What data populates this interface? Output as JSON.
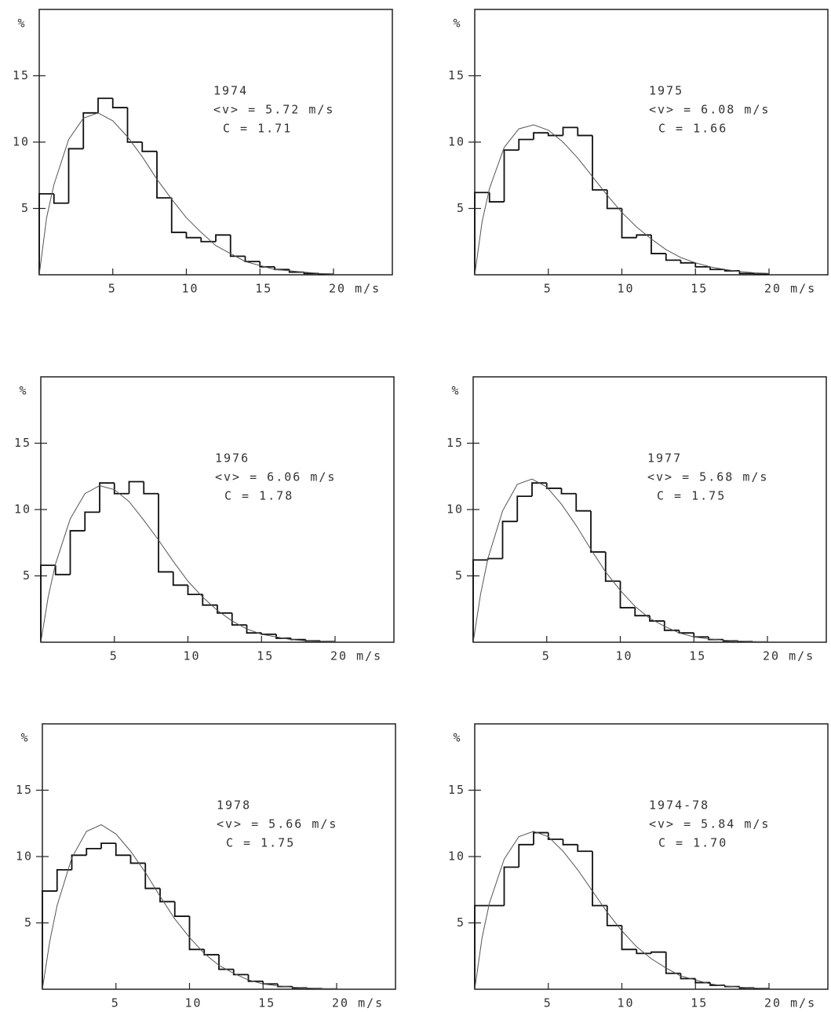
{
  "chart_data": [
    {
      "type": "histogram",
      "title": "1974",
      "annotations": [
        "<v> = 5.72 m/s",
        "C = 1.71"
      ],
      "ylabel": "%",
      "bins": [
        0,
        1,
        2,
        3,
        4,
        5,
        6,
        7,
        8,
        9,
        10,
        11,
        12,
        13,
        14,
        15,
        16,
        17,
        18,
        19,
        20
      ],
      "counts": [
        6.1,
        5.4,
        9.5,
        12.2,
        13.3,
        12.6,
        10,
        9.3,
        5.8,
        3.2,
        2.8,
        2.5,
        3.0,
        1.4,
        1.0,
        0.6,
        0.4,
        0.2,
        0.1,
        0.05
      ],
      "curve": {
        "x": [
          0,
          0.5,
          1,
          2,
          3,
          4,
          5,
          6,
          7,
          8,
          9,
          10,
          11,
          12,
          13,
          14,
          15,
          16,
          17,
          18,
          19,
          20
        ],
        "values": [
          0,
          4.3,
          6.8,
          10.2,
          11.8,
          12.2,
          11.6,
          10.4,
          8.9,
          7.2,
          5.7,
          4.3,
          3.2,
          2.2,
          1.6,
          1.0,
          0.7,
          0.4,
          0.3,
          0.2,
          0.1,
          0.05
        ]
      },
      "xlim": [
        0,
        24
      ],
      "ylim": [
        0,
        20
      ],
      "xticks": [
        5,
        10,
        15,
        {
          "value": 20,
          "label": "20 m/s"
        }
      ],
      "yticks": [
        5,
        10,
        15
      ]
    },
    {
      "type": "histogram",
      "title": "1975",
      "annotations": [
        "<v> = 6.08 m/s",
        "C = 1.66"
      ],
      "ylabel": "%",
      "bins": [
        0,
        1,
        2,
        3,
        4,
        5,
        6,
        7,
        8,
        9,
        10,
        11,
        12,
        13,
        14,
        15,
        16,
        17,
        18,
        19,
        20
      ],
      "counts": [
        6.2,
        5.5,
        9.4,
        10.2,
        10.7,
        10.5,
        11.1,
        10.5,
        6.4,
        5.0,
        2.8,
        3.0,
        1.6,
        1.1,
        0.9,
        0.6,
        0.4,
        0.3,
        0.1,
        0.05
      ],
      "curve": {
        "x": [
          0,
          0.5,
          1,
          2,
          3,
          4,
          5,
          6,
          7,
          8,
          9,
          10,
          11,
          12,
          13,
          14,
          15,
          16,
          17,
          18,
          19,
          20
        ],
        "values": [
          0,
          4.0,
          6.5,
          9.6,
          11.0,
          11.3,
          10.9,
          10.0,
          8.8,
          7.4,
          6.0,
          4.7,
          3.6,
          2.7,
          1.9,
          1.3,
          0.9,
          0.6,
          0.4,
          0.25,
          0.15,
          0.1
        ]
      },
      "xlim": [
        0,
        24
      ],
      "ylim": [
        0,
        20
      ],
      "xticks": [
        5,
        10,
        15,
        {
          "value": 20,
          "label": "20 m/s"
        }
      ],
      "yticks": [
        5,
        10,
        15
      ]
    },
    {
      "type": "histogram",
      "title": "1976",
      "annotations": [
        "<v> = 6.06 m/s",
        "C = 1.78"
      ],
      "ylabel": "%",
      "bins": [
        0,
        1,
        2,
        3,
        4,
        5,
        6,
        7,
        8,
        9,
        10,
        11,
        12,
        13,
        14,
        15,
        16,
        17,
        18,
        19,
        20
      ],
      "counts": [
        5.8,
        5.1,
        8.4,
        9.8,
        12.0,
        11.2,
        12.1,
        11.2,
        5.3,
        4.3,
        3.6,
        2.8,
        2.2,
        1.3,
        0.7,
        0.6,
        0.3,
        0.2,
        0.1,
        0.05
      ],
      "curve": {
        "x": [
          0,
          0.5,
          1,
          2,
          3,
          4,
          5,
          6,
          7,
          8,
          9,
          10,
          11,
          12,
          13,
          14,
          15,
          16,
          17,
          18,
          19,
          20
        ],
        "values": [
          0,
          3.4,
          5.9,
          9.3,
          11.2,
          11.8,
          11.5,
          10.6,
          9.2,
          7.7,
          6.1,
          4.6,
          3.4,
          2.4,
          1.6,
          1.0,
          0.6,
          0.4,
          0.2,
          0.1,
          0.06,
          0.03
        ]
      },
      "xlim": [
        0,
        24
      ],
      "ylim": [
        0,
        20
      ],
      "xticks": [
        5,
        10,
        15,
        {
          "value": 20,
          "label": "20 m/s"
        }
      ],
      "yticks": [
        5,
        10,
        15
      ]
    },
    {
      "type": "histogram",
      "title": "1977",
      "annotations": [
        "<v> = 5.68 m/s",
        "C = 1.75"
      ],
      "ylabel": "%",
      "bins": [
        0,
        1,
        2,
        3,
        4,
        5,
        6,
        7,
        8,
        9,
        10,
        11,
        12,
        13,
        14,
        15,
        16,
        17,
        18,
        19,
        20
      ],
      "counts": [
        6.2,
        6.3,
        9.1,
        11.0,
        12.0,
        11.6,
        11.2,
        9.9,
        6.8,
        4.6,
        2.6,
        2.0,
        1.6,
        0.9,
        0.7,
        0.4,
        0.2,
        0.1,
        0.05,
        0.02
      ],
      "curve": {
        "x": [
          0,
          0.5,
          1,
          2,
          3,
          4,
          5,
          6,
          7,
          8,
          9,
          10,
          11,
          12,
          13,
          14,
          15,
          16,
          17,
          18,
          19,
          20
        ],
        "values": [
          0,
          3.6,
          6.3,
          9.9,
          11.9,
          12.3,
          11.7,
          10.4,
          8.8,
          7.0,
          5.3,
          3.9,
          2.7,
          1.8,
          1.2,
          0.7,
          0.4,
          0.25,
          0.15,
          0.08,
          0.04,
          0.02
        ]
      },
      "xlim": [
        0,
        24
      ],
      "ylim": [
        0,
        20
      ],
      "xticks": [
        5,
        10,
        15,
        {
          "value": 20,
          "label": "20 m/s"
        }
      ],
      "yticks": [
        5,
        10,
        15
      ]
    },
    {
      "type": "histogram",
      "title": "1978",
      "annotations": [
        "<v> = 5.66 m/s",
        "C = 1.75"
      ],
      "ylabel": "%",
      "bins": [
        0,
        1,
        2,
        3,
        4,
        5,
        6,
        7,
        8,
        9,
        10,
        11,
        12,
        13,
        14,
        15,
        16,
        17,
        18,
        19,
        20
      ],
      "counts": [
        7.4,
        9.0,
        10.1,
        10.6,
        11.0,
        10.1,
        9.5,
        7.6,
        6.6,
        5.5,
        3.0,
        2.6,
        1.5,
        1.1,
        0.6,
        0.4,
        0.2,
        0.1,
        0.05,
        0.02
      ],
      "curve": {
        "x": [
          0,
          0.5,
          1,
          2,
          3,
          4,
          5,
          6,
          7,
          8,
          9,
          10,
          11,
          12,
          13,
          14,
          15,
          16,
          17,
          18,
          19,
          20
        ],
        "values": [
          0,
          3.6,
          6.3,
          9.9,
          11.9,
          12.4,
          11.7,
          10.4,
          8.8,
          7.0,
          5.3,
          3.9,
          2.7,
          1.8,
          1.2,
          0.7,
          0.4,
          0.25,
          0.15,
          0.08,
          0.04,
          0.02
        ]
      },
      "xlim": [
        0,
        24
      ],
      "ylim": [
        0,
        20
      ],
      "xticks": [
        5,
        10,
        15,
        {
          "value": 20,
          "label": "20 m/s"
        }
      ],
      "yticks": [
        5,
        10,
        15
      ]
    },
    {
      "type": "histogram",
      "title": "1974-78",
      "annotations": [
        "<v> = 5.84 m/s",
        "C = 1.70"
      ],
      "ylabel": "%",
      "bins": [
        0,
        1,
        2,
        3,
        4,
        5,
        6,
        7,
        8,
        9,
        10,
        11,
        12,
        13,
        14,
        15,
        16,
        17,
        18,
        19,
        20
      ],
      "counts": [
        6.3,
        6.3,
        9.2,
        10.9,
        11.8,
        11.3,
        10.9,
        10.4,
        6.3,
        4.8,
        3.0,
        2.7,
        2.8,
        1.2,
        0.8,
        0.5,
        0.3,
        0.2,
        0.1,
        0.05
      ],
      "curve": {
        "x": [
          0,
          0.5,
          1,
          2,
          3,
          4,
          5,
          6,
          7,
          8,
          9,
          10,
          11,
          12,
          13,
          14,
          15,
          16,
          17,
          18,
          19,
          20
        ],
        "values": [
          0,
          3.9,
          6.5,
          9.8,
          11.5,
          11.9,
          11.5,
          10.4,
          9.0,
          7.4,
          5.8,
          4.4,
          3.2,
          2.3,
          1.6,
          1.0,
          0.7,
          0.4,
          0.25,
          0.15,
          0.08,
          0.04
        ]
      },
      "xlim": [
        0,
        24
      ],
      "ylim": [
        0,
        20
      ],
      "xticks": [
        5,
        10,
        15,
        {
          "value": 20,
          "label": "20 m/s"
        }
      ],
      "yticks": [
        5,
        10,
        15
      ]
    }
  ]
}
